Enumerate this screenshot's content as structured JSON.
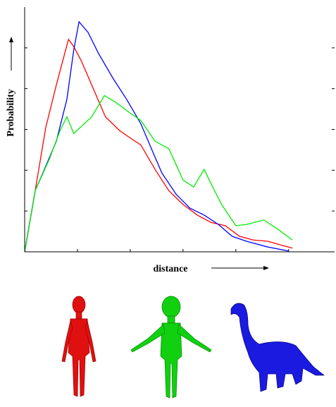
{
  "chart_data": {
    "type": "line",
    "xlabel": "distance",
    "ylabel": "Probability",
    "xlim": [
      0,
      5.87
    ],
    "ylim": [
      0,
      6
    ],
    "xticks": [
      1,
      2,
      3,
      4,
      5
    ],
    "yticks": [
      1,
      2,
      3,
      4,
      5
    ],
    "series": [
      {
        "color": "#ff0000",
        "x": [
          0,
          0.2,
          0.4,
          0.6,
          0.83,
          0.93,
          1.07,
          1.27,
          1.53,
          1.8,
          2,
          2.2,
          2.47,
          2.73,
          3,
          3.27,
          3.53,
          3.8,
          4.07,
          4.33,
          4.6,
          4.87,
          5.07
        ],
        "values": [
          0,
          1.5,
          3.05,
          4.09,
          5.21,
          5.03,
          4.69,
          4.09,
          3.31,
          2.97,
          2.79,
          2.62,
          2.02,
          1.5,
          1.16,
          0.9,
          0.72,
          0.64,
          0.38,
          0.29,
          0.26,
          0.16,
          0.09
        ]
      },
      {
        "color": "#0000ff",
        "x": [
          0,
          0.2,
          0.4,
          0.6,
          0.8,
          0.93,
          1.03,
          1.2,
          1.4,
          1.67,
          1.93,
          2.2,
          2.4,
          2.6,
          2.87,
          3.13,
          3.4,
          3.67,
          3.93,
          4.2,
          4.6,
          5.0
        ],
        "values": [
          0,
          1.5,
          2.1,
          2.71,
          3.74,
          4.95,
          5.64,
          5.38,
          4.86,
          4.26,
          3.74,
          3.14,
          2.53,
          1.93,
          1.41,
          1.07,
          0.9,
          0.67,
          0.38,
          0.26,
          0.12,
          0.02
        ]
      },
      {
        "color": "#00ee00",
        "x": [
          0,
          0.2,
          0.47,
          0.67,
          0.8,
          0.93,
          1.07,
          1.27,
          1.51,
          1.73,
          2,
          2.2,
          2.47,
          2.73,
          3,
          3.2,
          3.4,
          3.53,
          3.73,
          4,
          4.2,
          4.53,
          4.8,
          5.07
        ],
        "values": [
          0,
          1.5,
          2.28,
          2.97,
          3.31,
          2.9,
          3.07,
          3.31,
          3.83,
          3.66,
          3.4,
          3.22,
          2.71,
          2.53,
          1.76,
          1.59,
          2.02,
          1.67,
          1.16,
          0.64,
          0.67,
          0.78,
          0.55,
          0.29
        ]
      }
    ]
  }
}
